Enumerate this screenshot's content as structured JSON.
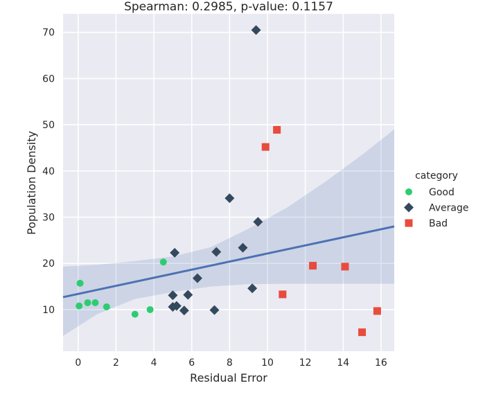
{
  "chart_data": {
    "type": "scatter",
    "title": "Spearman: 0.2985, p-value: 0.1157",
    "xlabel": "Residual Error",
    "ylabel": "Population Density",
    "xlim": [
      -0.8,
      16.7
    ],
    "ylim": [
      1.0,
      74.0
    ],
    "xticks": [
      0,
      2,
      4,
      6,
      8,
      10,
      12,
      14,
      16
    ],
    "yticks": [
      10,
      20,
      30,
      40,
      50,
      60,
      70
    ],
    "grid": true,
    "legend": {
      "title": "category",
      "placement": "right"
    },
    "series": [
      {
        "name": "Good",
        "marker": "circle",
        "color": "#2ecc71",
        "points": [
          [
            0.1,
            15.7
          ],
          [
            0.05,
            10.8
          ],
          [
            0.5,
            11.5
          ],
          [
            0.9,
            11.5
          ],
          [
            1.5,
            10.6
          ],
          [
            3.0,
            9.0
          ],
          [
            3.8,
            10.0
          ],
          [
            4.5,
            20.3
          ]
        ]
      },
      {
        "name": "Average",
        "marker": "diamond",
        "color": "#34495e",
        "points": [
          [
            9.4,
            70.5
          ],
          [
            8.0,
            34.1
          ],
          [
            9.5,
            29.0
          ],
          [
            5.1,
            22.3
          ],
          [
            7.3,
            22.5
          ],
          [
            8.7,
            23.4
          ],
          [
            6.3,
            16.8
          ],
          [
            5.0,
            13.1
          ],
          [
            5.8,
            13.2
          ],
          [
            5.0,
            10.6
          ],
          [
            5.2,
            10.8
          ],
          [
            5.6,
            9.8
          ],
          [
            7.2,
            9.9
          ],
          [
            9.2,
            14.6
          ]
        ]
      },
      {
        "name": "Bad",
        "marker": "square",
        "color": "#e74c3c",
        "points": [
          [
            10.5,
            48.9
          ],
          [
            9.9,
            45.2
          ],
          [
            12.4,
            19.5
          ],
          [
            14.1,
            19.3
          ],
          [
            10.8,
            13.3
          ],
          [
            15.8,
            9.7
          ],
          [
            15.0,
            5.1
          ]
        ]
      }
    ],
    "regression": {
      "color": "#4c72b0",
      "band_color": "#4c72b0",
      "line": [
        [
          -0.8,
          12.7
        ],
        [
          16.7,
          28.0
        ]
      ],
      "band_upper": [
        [
          -0.8,
          19.3
        ],
        [
          1.0,
          19.7
        ],
        [
          3.0,
          20.5
        ],
        [
          5.0,
          21.5
        ],
        [
          7.0,
          23.5
        ],
        [
          9.0,
          27.5
        ],
        [
          11.0,
          32.0
        ],
        [
          13.0,
          37.5
        ],
        [
          15.0,
          43.5
        ],
        [
          16.7,
          49.0
        ]
      ],
      "band_lower": [
        [
          -0.8,
          4.3
        ],
        [
          1.0,
          9.0
        ],
        [
          3.0,
          12.3
        ],
        [
          5.0,
          13.8
        ],
        [
          7.0,
          15.0
        ],
        [
          9.0,
          15.5
        ],
        [
          11.0,
          15.6
        ],
        [
          13.0,
          15.6
        ],
        [
          15.0,
          15.6
        ],
        [
          16.7,
          15.6
        ]
      ]
    }
  }
}
